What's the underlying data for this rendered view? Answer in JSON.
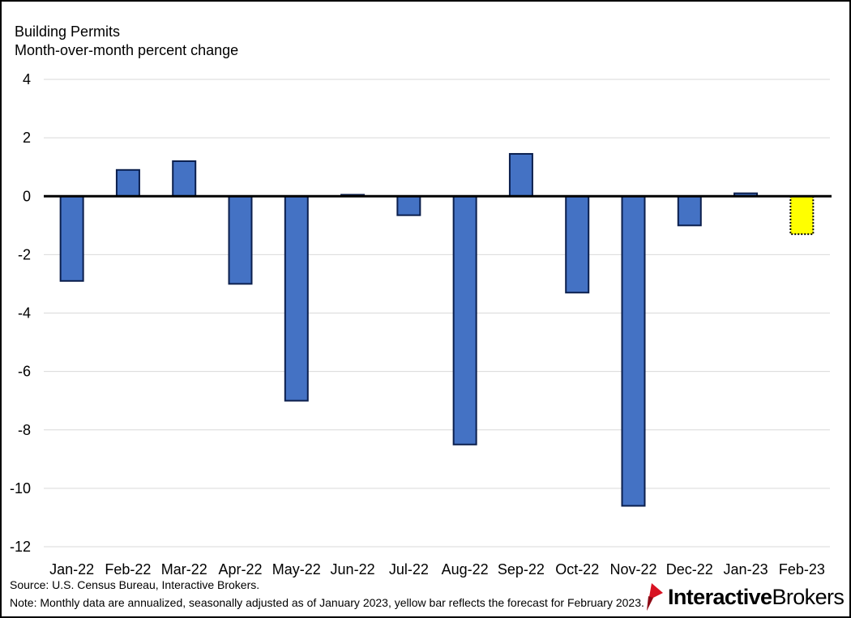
{
  "title": "Building Permits",
  "subtitle": "Month-over-month percent change",
  "footer": {
    "source": "Source: U.S. Census Bureau, Interactive Brokers.",
    "note": "Note: Monthly data are annualized, seasonally adjusted as of January 2023, yellow bar reflects the forecast for February 2023."
  },
  "logo": {
    "bold": "Interactive",
    "regular": "Brokers",
    "mark_color": "#d81222"
  },
  "colors": {
    "actual": "#4472c4",
    "actual_border": "#0b1f4d",
    "forecast": "#ffff00",
    "gridline": "#d9d9d9",
    "zero_line": "#000000"
  },
  "chart_data": {
    "type": "bar",
    "title": "Building Permits",
    "subtitle": "Month-over-month percent change",
    "categories": [
      "Jan-22",
      "Feb-22",
      "Mar-22",
      "Apr-22",
      "May-22",
      "Jun-22",
      "Jul-22",
      "Aug-22",
      "Sep-22",
      "Oct-22",
      "Nov-22",
      "Dec-22",
      "Jan-23",
      "Feb-23"
    ],
    "values": [
      -2.9,
      0.9,
      1.2,
      -3.0,
      -7.0,
      0.05,
      -0.65,
      -8.5,
      1.45,
      -3.3,
      -10.6,
      -1.0,
      0.1,
      -1.3
    ],
    "forecast": [
      false,
      false,
      false,
      false,
      false,
      false,
      false,
      false,
      false,
      false,
      false,
      false,
      false,
      true
    ],
    "yticks": [
      4,
      2,
      0,
      -2,
      -4,
      -6,
      -8,
      -10,
      -12
    ],
    "ylim": [
      -12,
      4
    ],
    "grid": true,
    "legend": "none"
  }
}
